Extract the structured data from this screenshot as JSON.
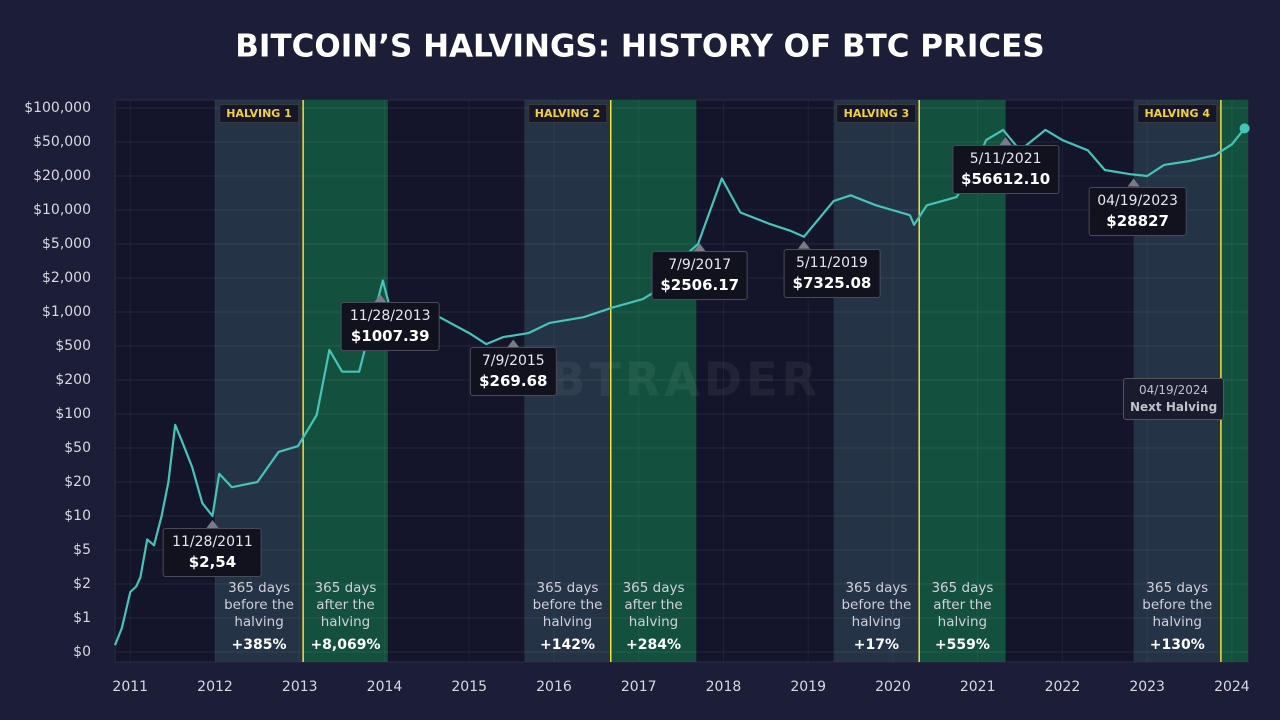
{
  "title": "BITCOIN’S HALVINGS: HISTORY OF BTC PRICES",
  "watermark": "TABTRADER",
  "chart_data": {
    "type": "line",
    "log_scale": true,
    "grid": true,
    "color": "#45c4b8",
    "xlim": [
      2010.82,
      2024.19
    ],
    "xticks": [
      2011,
      2012,
      2013,
      2014,
      2015,
      2016,
      2017,
      2018,
      2019,
      2020,
      2021,
      2022,
      2023,
      2024
    ],
    "ylim": [
      0,
      100000
    ],
    "yticks": [
      {
        "value": 0,
        "label": "$0"
      },
      {
        "value": 1,
        "label": "$1"
      },
      {
        "value": 2,
        "label": "$2"
      },
      {
        "value": 5,
        "label": "$5"
      },
      {
        "value": 10,
        "label": "$10"
      },
      {
        "value": 20,
        "label": "$20"
      },
      {
        "value": 50,
        "label": "$50"
      },
      {
        "value": 100,
        "label": "$100"
      },
      {
        "value": 200,
        "label": "$200"
      },
      {
        "value": 500,
        "label": "$500"
      },
      {
        "value": 1000,
        "label": "$1,000"
      },
      {
        "value": 2000,
        "label": "$2,000"
      },
      {
        "value": 5000,
        "label": "$5,000"
      },
      {
        "value": 10000,
        "label": "$10,000"
      },
      {
        "value": 20000,
        "label": "$20,000"
      },
      {
        "value": 50000,
        "label": "$50,000"
      },
      {
        "value": 100000,
        "label": "$100,000"
      }
    ],
    "x": [
      2010.82,
      2010.9,
      2011.0,
      2011.07,
      2011.12,
      2011.2,
      2011.28,
      2011.37,
      2011.45,
      2011.53,
      2011.62,
      2011.73,
      2011.85,
      2011.97,
      2012.05,
      2012.2,
      2012.5,
      2012.75,
      2012.98,
      2013.2,
      2013.35,
      2013.5,
      2013.7,
      2013.98,
      2014.05,
      2014.3,
      2014.65,
      2015.0,
      2015.2,
      2015.4,
      2015.7,
      2015.95,
      2016.35,
      2016.7,
      2017.05,
      2017.3,
      2017.45,
      2017.7,
      2017.98,
      2018.2,
      2018.55,
      2018.8,
      2018.95,
      2019.3,
      2019.5,
      2019.8,
      2020.2,
      2020.25,
      2020.4,
      2020.75,
      2020.95,
      2021.1,
      2021.3,
      2021.5,
      2021.8,
      2022.0,
      2022.3,
      2022.5,
      2022.8,
      2023.0,
      2023.2,
      2023.5,
      2023.8,
      2024.0,
      2024.15
    ],
    "values": [
      0.2,
      0.7,
      1.7,
      1.9,
      2.4,
      6.2,
      5.5,
      10,
      20,
      80,
      55,
      30,
      13,
      10,
      25,
      18,
      20,
      45,
      52,
      98,
      450,
      250,
      250,
      1900,
      1200,
      1100,
      900,
      650,
      520,
      600,
      650,
      800,
      900,
      1100,
      1300,
      1700,
      3000,
      5000,
      19000,
      9500,
      7500,
      6500,
      5800,
      12000,
      13500,
      11000,
      9000,
      7400,
      11000,
      13000,
      23500,
      52000,
      64000,
      40000,
      64000,
      52000,
      40000,
      23500,
      21000,
      20000,
      27000,
      30000,
      35000,
      47000,
      66000
    ],
    "halvings": [
      {
        "label": "HALVING 1",
        "before_start": 2012.0,
        "date": 2013.04,
        "after_end": 2014.04,
        "before_text": "365 days before the halving",
        "before_change": "+385%",
        "after_text": "365 days after the halving",
        "after_change": "+8,069%"
      },
      {
        "label": "HALVING 2",
        "before_start": 2015.65,
        "date": 2016.67,
        "after_end": 2017.68,
        "before_text": "365 days before the halving",
        "before_change": "+142%",
        "after_text": "365 days after the halving",
        "after_change": "+284%"
      },
      {
        "label": "HALVING 3",
        "before_start": 2019.3,
        "date": 2020.31,
        "after_end": 2021.33,
        "before_text": "365 days before the halving",
        "before_change": "+17%",
        "after_text": "365 days after the halving",
        "after_change": "+559%"
      },
      {
        "label": "HALVING 4",
        "before_start": 2022.84,
        "date": 2023.87,
        "after_end": 2024.19,
        "before_text": "365 days before the halving",
        "before_change": "+130%"
      }
    ],
    "callouts": [
      {
        "x": 2011.97,
        "date": "11/28/2011",
        "price": "$2,54"
      },
      {
        "x": 2013.95,
        "date": "11/28/2013",
        "price": "$1007.39"
      },
      {
        "x": 2015.52,
        "date": "7/9/2015",
        "price": "$269.68"
      },
      {
        "x": 2017.72,
        "date": "7/9/2017",
        "price": "$2506.17"
      },
      {
        "x": 2018.95,
        "date": "5/11/2019",
        "price": "$7325.08"
      },
      {
        "x": 2021.33,
        "date": "5/11/2021",
        "price": "$56612.10"
      },
      {
        "x": 2022.84,
        "date": "04/19/2023",
        "price": "$28827"
      }
    ],
    "next_halving": {
      "date": "04/19/2024",
      "label": "Next Halving"
    }
  }
}
